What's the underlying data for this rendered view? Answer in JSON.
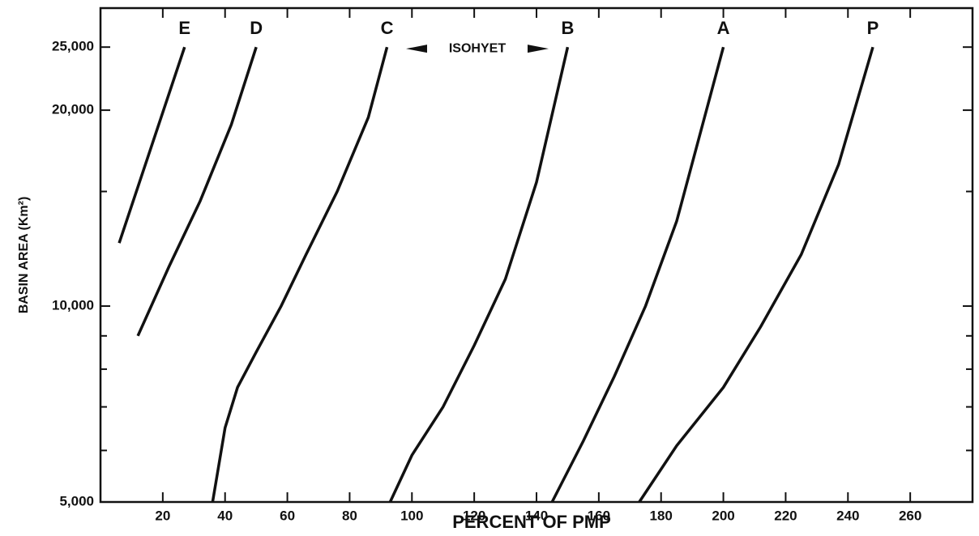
{
  "chart_data": {
    "type": "line",
    "xlabel": "PERCENT OF PMP",
    "ylabel": "BASIN AREA (Km²)",
    "annotation": "ISOHYET",
    "xlim": [
      0,
      280
    ],
    "xticks": [
      20,
      40,
      60,
      80,
      100,
      120,
      140,
      160,
      180,
      200,
      220,
      240,
      260
    ],
    "ylim": [
      5000,
      28700
    ],
    "ylog": true,
    "yticks": [
      {
        "value": 5000,
        "label": "5,000"
      },
      {
        "value": 10000,
        "label": "10,000"
      },
      {
        "value": 20000,
        "label": "20,000"
      },
      {
        "value": 25000,
        "label": "25,000"
      }
    ],
    "yminorticks": [
      6000,
      7000,
      8000,
      9000,
      15000
    ],
    "color": "#111111",
    "series": [
      {
        "name": "E",
        "x": [
          6,
          27
        ],
        "values": [
          12500,
          25000
        ]
      },
      {
        "name": "D",
        "x": [
          12,
          22,
          32,
          42,
          50
        ],
        "values": [
          9000,
          11500,
          14500,
          19000,
          25000
        ]
      },
      {
        "name": "C",
        "x": [
          36,
          38,
          40,
          44,
          50,
          58,
          66,
          76,
          86,
          92
        ],
        "values": [
          5000,
          5700,
          6500,
          7500,
          8500,
          10000,
          12000,
          15000,
          19500,
          25000
        ]
      },
      {
        "name": "B",
        "x": [
          93,
          100,
          110,
          120,
          130,
          140,
          150
        ],
        "values": [
          5000,
          5900,
          7000,
          8700,
          11000,
          15500,
          25000
        ]
      },
      {
        "name": "A",
        "x": [
          145,
          155,
          165,
          175,
          185,
          200
        ],
        "values": [
          5000,
          6200,
          7800,
          10000,
          13500,
          25000
        ]
      },
      {
        "name": "P",
        "x": [
          173,
          185,
          200,
          212,
          225,
          237,
          248
        ],
        "values": [
          5000,
          6100,
          7500,
          9300,
          12000,
          16500,
          25000
        ]
      }
    ]
  }
}
